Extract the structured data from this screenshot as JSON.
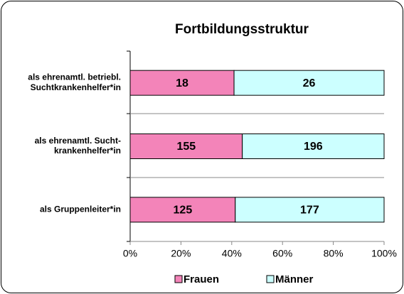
{
  "chart_data": {
    "type": "bar100",
    "orientation": "horizontal",
    "title": "Fortbildungsstruktur",
    "categories": [
      "als ehrenamtl. betriebl.\nSuchtkrankenhelfer*in",
      "als ehrenamtl. Sucht-\nkrankenhelfer*in",
      "als Gruppenleiter*in"
    ],
    "series": [
      {
        "name": "Frauen",
        "color": "#f384b9",
        "values": [
          18,
          155,
          125
        ]
      },
      {
        "name": "Männer",
        "color": "#ccffff",
        "values": [
          26,
          196,
          177
        ]
      }
    ],
    "xlim": [
      0,
      100
    ],
    "xticks": [
      {
        "value": 0,
        "label": "0%"
      },
      {
        "value": 20,
        "label": "20%"
      },
      {
        "value": 40,
        "label": "40%"
      },
      {
        "value": 60,
        "label": "60%"
      },
      {
        "value": 80,
        "label": "80%"
      },
      {
        "value": 100,
        "label": "100%"
      }
    ],
    "legend": "bottom"
  }
}
